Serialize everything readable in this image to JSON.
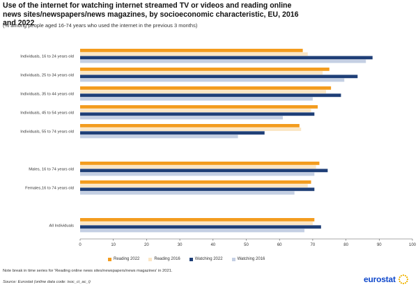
{
  "title": "Use of the internet for watching internet streamed TV or videos and reading online news sites/newspapers/news magazines, by socioeconomic characteristic, EU, 2016 and 2022",
  "subtitle": "(% among people aged 16-74 years who used the internet in the previous 3 months)",
  "note": "Note break in time series for 'Reading online news sites/newspapers/news magazines' in 2021.",
  "source": "Source: Eurostat (online data code: isoc_ci_ac_i)",
  "logo_text": "eurostat",
  "colors": {
    "reading_2022": "#f39c1e",
    "reading_2016": "#fbe6c4",
    "watching_2022": "#1f3f77",
    "watching_2016": "#c4cfe3"
  },
  "chart_data": {
    "type": "bar",
    "orientation": "horizontal",
    "categories": [
      "Individuals, 16 to 24 years old",
      "Individuals, 25 to 34 years old",
      "Individuals, 35 to 44 years old",
      "Individuals, 45 to 54 years old",
      "Individuals, 55 to 74 years old",
      "",
      "Males, 16 to 74 years old",
      "Females,16 to 74 years old",
      "",
      "All Individuals"
    ],
    "series": [
      {
        "name": "Reading 2022",
        "color": "#f39c1e",
        "values": [
          67,
          75,
          75.5,
          71.5,
          66,
          null,
          72,
          69.5,
          null,
          70.5
        ]
      },
      {
        "name": "Reading 2016",
        "color": "#fbe6c4",
        "values": [
          68.5,
          73,
          74,
          69.5,
          66.5,
          null,
          71,
          68.5,
          null,
          70
        ]
      },
      {
        "name": "Watching 2022",
        "color": "#1f3f77",
        "values": [
          88,
          83.5,
          78.5,
          70.5,
          55.5,
          null,
          74.5,
          70.5,
          null,
          72.5
        ]
      },
      {
        "name": "Watching 2016",
        "color": "#c4cfe3",
        "values": [
          86,
          79.5,
          70,
          61,
          47.5,
          null,
          70.5,
          64.5,
          null,
          67.5
        ]
      }
    ],
    "xlim": [
      0,
      100
    ],
    "xticks": [
      0,
      10,
      20,
      30,
      40,
      50,
      60,
      70,
      80,
      90,
      100
    ],
    "grid": false,
    "legend_position": "bottom"
  }
}
